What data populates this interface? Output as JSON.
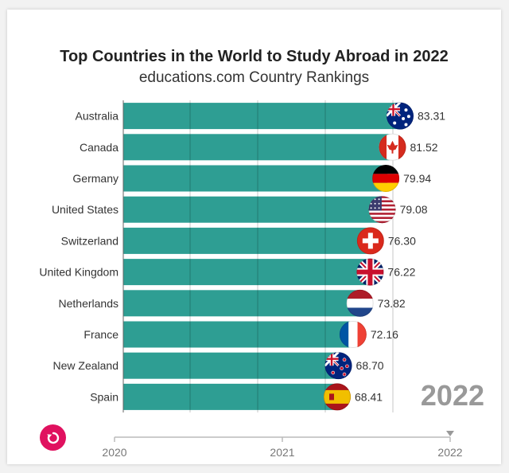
{
  "chart_data": {
    "type": "bar",
    "title": "Top Countries in the World to Study Abroad in 2022",
    "subtitle": "educations.com Country Rankings",
    "categories": [
      "Australia",
      "Canada",
      "Germany",
      "United States",
      "Switzerland",
      "United Kingdom",
      "Netherlands",
      "France",
      "New Zealand",
      "Spain"
    ],
    "values": [
      83.31,
      81.52,
      79.94,
      79.08,
      76.3,
      76.22,
      73.82,
      72.16,
      68.7,
      68.41
    ],
    "value_labels": [
      "83.31",
      "81.52",
      "79.94",
      "79.08",
      "76.30",
      "76.22",
      "73.82",
      "72.16",
      "68.70",
      "68.41"
    ],
    "flag_icons": [
      "australia-flag-icon",
      "canada-flag-icon",
      "germany-flag-icon",
      "united-states-flag-icon",
      "switzerland-flag-icon",
      "united-kingdom-flag-icon",
      "netherlands-flag-icon",
      "france-flag-icon",
      "new-zealand-flag-icon",
      "spain-flag-icon"
    ],
    "bar_color": "#2e9e93",
    "orientation": "horizontal",
    "grid": true,
    "current_year_label": "2022",
    "timeline": {
      "ticks": [
        "2020",
        "2021",
        "2022"
      ],
      "current": "2022"
    }
  },
  "controls": {
    "replay_icon": "replay-icon"
  }
}
